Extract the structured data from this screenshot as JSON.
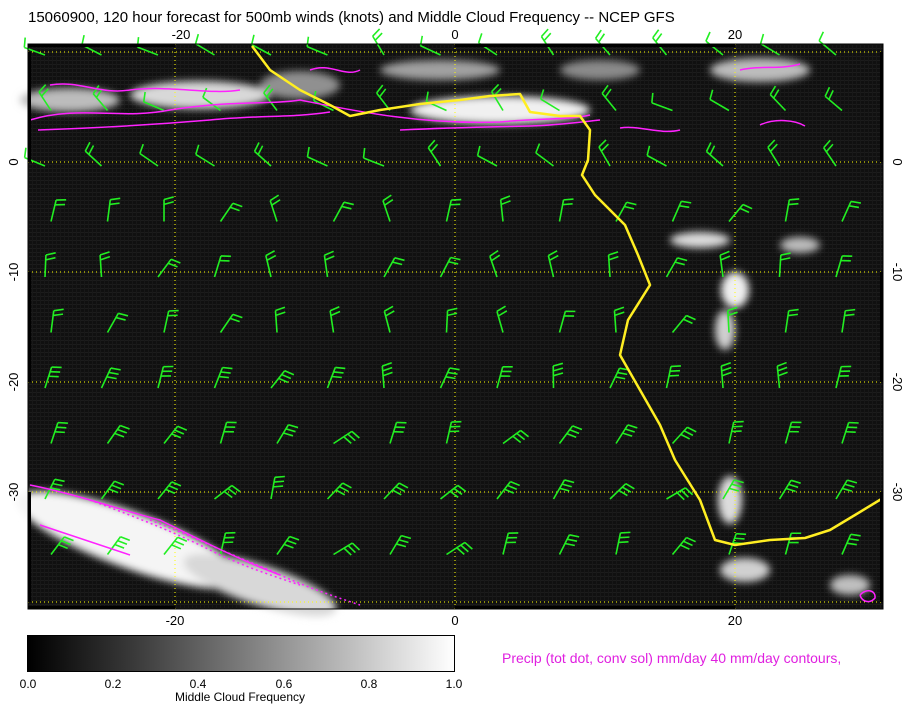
{
  "title": "15060900, 120 hour forecast for 500mb winds (knots) and Middle Cloud Frequency -- NCEP GFS",
  "map": {
    "lon_range": [
      -30,
      31
    ],
    "lat_range": [
      -40,
      10
    ],
    "lon_ticks": [
      "-20",
      "0",
      "20"
    ],
    "lat_ticks": [
      "0",
      "-10",
      "-20",
      "-30"
    ],
    "gridline_color": "#ffff00",
    "barb_color": "#22ee22",
    "coastline_color": "#ffee22",
    "precip_contour_color": "#ff22ff",
    "background_color": "#101010"
  },
  "colorbar": {
    "ticks": [
      "0.0",
      "0.2",
      "0.4",
      "0.6",
      "0.8",
      "1.0"
    ],
    "label": "Middle Cloud Frequency"
  },
  "precip_note": "Precip (tot dot, conv sol) mm/day 40 mm/day contours,"
}
